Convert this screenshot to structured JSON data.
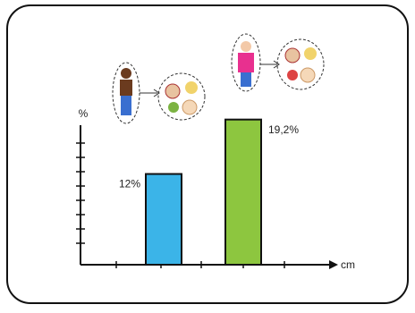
{
  "chart_data": {
    "type": "bar",
    "y_label": "%",
    "x_label": "cm",
    "categories": [
      null,
      null
    ],
    "values": [
      12,
      19.2
    ],
    "value_labels": [
      "12%",
      "19,2%"
    ],
    "colors": [
      "#3bb4e8",
      "#8dc63f"
    ],
    "ylim": [
      0,
      22
    ]
  }
}
